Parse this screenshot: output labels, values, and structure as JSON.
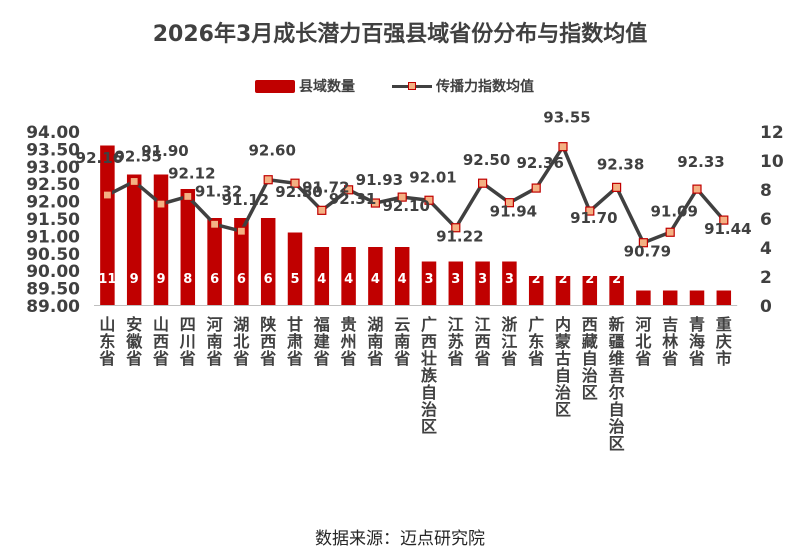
{
  "title": "2026年3月成长潜力百强县域省份分布与指数均值",
  "legend": {
    "bar_label": "县域数量",
    "line_label": "传播力指数均值"
  },
  "source": "数据来源：迈点研究院",
  "colors": {
    "bar": "#C00000",
    "line": "#404040",
    "marker_fill": "#F4B183",
    "marker_edge": "#C00000",
    "text": "#404040"
  },
  "chart_data": {
    "type": "bar",
    "title": "2026年3月成长潜力百强县域省份分布与指数均值",
    "categories": [
      "山东省",
      "安徽省",
      "山西省",
      "四川省",
      "河南省",
      "湖北省",
      "陕西省",
      "甘肃省",
      "福建省",
      "贵州省",
      "湖南省",
      "云南省",
      "广西壮族自治区",
      "江苏省",
      "江西省",
      "浙江省",
      "广东省",
      "内蒙古自治区",
      "西藏自治区",
      "新疆维吾尔自治区",
      "河北省",
      "吉林省",
      "青海省",
      "重庆市"
    ],
    "series": [
      {
        "name": "县域数量",
        "type": "bar",
        "axis": "left",
        "values": [
          11,
          9,
          9,
          8,
          6,
          6,
          6,
          5,
          4,
          4,
          4,
          4,
          3,
          3,
          3,
          3,
          2,
          2,
          2,
          2,
          1,
          1,
          1,
          1
        ]
      },
      {
        "name": "传播力指数均值",
        "type": "line",
        "axis": "right",
        "values": [
          92.16,
          92.55,
          91.9,
          92.12,
          91.32,
          91.12,
          92.6,
          92.5,
          91.72,
          92.31,
          91.93,
          92.1,
          92.01,
          91.22,
          92.5,
          91.94,
          92.36,
          93.55,
          91.7,
          92.38,
          90.79,
          91.09,
          92.33,
          91.44
        ]
      }
    ],
    "left_axis": {
      "ylim": [
        89.0,
        94.0
      ],
      "ticks": [
        "94.00",
        "93.50",
        "93.00",
        "92.50",
        "92.00",
        "91.50",
        "91.00",
        "90.50",
        "90.00",
        "89.50",
        "89.00"
      ]
    },
    "right_axis": {
      "ylim": [
        0,
        12
      ],
      "ticks": [
        "12",
        "10",
        "8",
        "6",
        "4",
        "2",
        "0"
      ]
    },
    "grid": false,
    "legend_position": "top-center"
  }
}
